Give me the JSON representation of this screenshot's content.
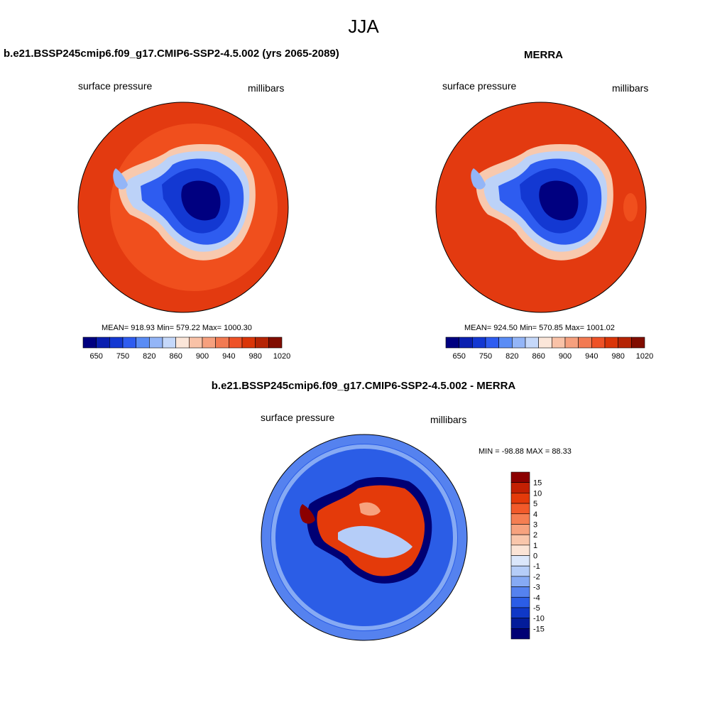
{
  "page": {
    "season": "JJA"
  },
  "panels": [
    {
      "id": "model",
      "title": "b.e21.BSSP245cmip6.f09_g17.CMIP6-SSP2-4.5.002 (yrs 2065-2089)",
      "left_label": "surface pressure",
      "right_label": "millibars",
      "stats": "MEAN= 918.93  Min= 579.22  Max= 1000.30"
    },
    {
      "id": "obs",
      "title": "MERRA",
      "left_label": "surface pressure",
      "right_label": "millibars",
      "stats": "MEAN= 924.50  Min= 570.85  Max= 1001.02"
    },
    {
      "id": "diff",
      "title": "b.e21.BSSP245cmip6.f09_g17.CMIP6-SSP2-4.5.002 - MERRA",
      "left_label": "surface pressure",
      "right_label": "millibars",
      "stats": "MIN = -98.88 MAX =  88.33"
    }
  ],
  "colorbars": {
    "abs_labels": [
      "650",
      "750",
      "820",
      "860",
      "900",
      "940",
      "980",
      "1020"
    ],
    "abs_colors": [
      "#000080",
      "#0a1fb0",
      "#1338d2",
      "#2e5cf0",
      "#5a8cf5",
      "#93b5f7",
      "#c5d8fa",
      "#fbe6d9",
      "#f9c2a7",
      "#f6a07e",
      "#f27a52",
      "#ee5227",
      "#da3508",
      "#b52405",
      "#810d00"
    ],
    "diff_labels": [
      "15",
      "10",
      "5",
      "4",
      "3",
      "2",
      "1",
      "0",
      "-1",
      "-2",
      "-3",
      "-4",
      "-5",
      "-10",
      "-15"
    ],
    "diff_colors": [
      "#8b0000",
      "#c32003",
      "#e43a0a",
      "#f25a2a",
      "#f57e52",
      "#f7a27e",
      "#f9c6ab",
      "#fbe4d6",
      "#dbe7fb",
      "#b5cdf8",
      "#86aaf4",
      "#5582ef",
      "#2b5de6",
      "#0f38c7",
      "#031c9a",
      "#000074"
    ]
  },
  "chart_data": [
    {
      "type": "heatmap",
      "title": "b.e21.BSSP245cmip6.f09_g17.CMIP6-SSP2-4.5.002 (yrs 2065-2089)",
      "variable": "surface pressure",
      "units": "millibars",
      "projection": "south polar stereographic",
      "mean": 918.93,
      "min": 579.22,
      "max": 1000.3,
      "levels": [
        650,
        700,
        750,
        800,
        820,
        840,
        860,
        880,
        900,
        920,
        940,
        960,
        980,
        1000,
        1020
      ]
    },
    {
      "type": "heatmap",
      "title": "MERRA",
      "variable": "surface pressure",
      "units": "millibars",
      "projection": "south polar stereographic",
      "mean": 924.5,
      "min": 570.85,
      "max": 1001.02,
      "levels": [
        650,
        700,
        750,
        800,
        820,
        840,
        860,
        880,
        900,
        920,
        940,
        960,
        980,
        1000,
        1020
      ]
    },
    {
      "type": "heatmap",
      "title": "b.e21.BSSP245cmip6.f09_g17.CMIP6-SSP2-4.5.002 - MERRA",
      "variable": "surface pressure",
      "units": "millibars",
      "projection": "south polar stereographic",
      "min": -98.88,
      "max": 88.33,
      "levels": [
        -15,
        -10,
        -5,
        -4,
        -3,
        -2,
        -1,
        0,
        1,
        2,
        3,
        4,
        5,
        10,
        15
      ]
    }
  ]
}
